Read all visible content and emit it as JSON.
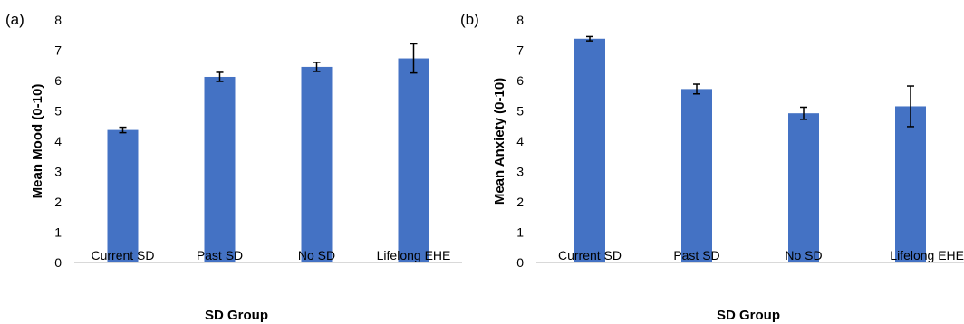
{
  "chart_data": [
    {
      "type": "bar",
      "panel_label": "(a)",
      "categories": [
        "Current SD",
        "Past SD",
        "No SD",
        "Lifelong EHE"
      ],
      "values": [
        4.37,
        6.12,
        6.45,
        6.73
      ],
      "errors": [
        0.09,
        0.15,
        0.15,
        0.48
      ],
      "xlabel": "SD Group",
      "ylabel": "Mean Mood (0-10)",
      "ylim": [
        0,
        8
      ],
      "yticks": [
        "0",
        "1",
        "2",
        "3",
        "4",
        "5",
        "6",
        "7",
        "8"
      ],
      "grid": false,
      "bar_color": "#4472C4"
    },
    {
      "type": "bar",
      "panel_label": "(b)",
      "categories": [
        "Current SD",
        "Past SD",
        "No SD",
        "Lifelong EHE"
      ],
      "values": [
        7.38,
        5.72,
        4.92,
        5.15
      ],
      "errors": [
        0.07,
        0.16,
        0.2,
        0.67
      ],
      "xlabel": "SD Group",
      "ylabel": "Mean Anxiety (0-10)",
      "ylim": [
        0,
        8
      ],
      "yticks": [
        "0",
        "1",
        "2",
        "3",
        "4",
        "5",
        "6",
        "7",
        "8"
      ],
      "grid": false,
      "bar_color": "#4472C4"
    }
  ]
}
